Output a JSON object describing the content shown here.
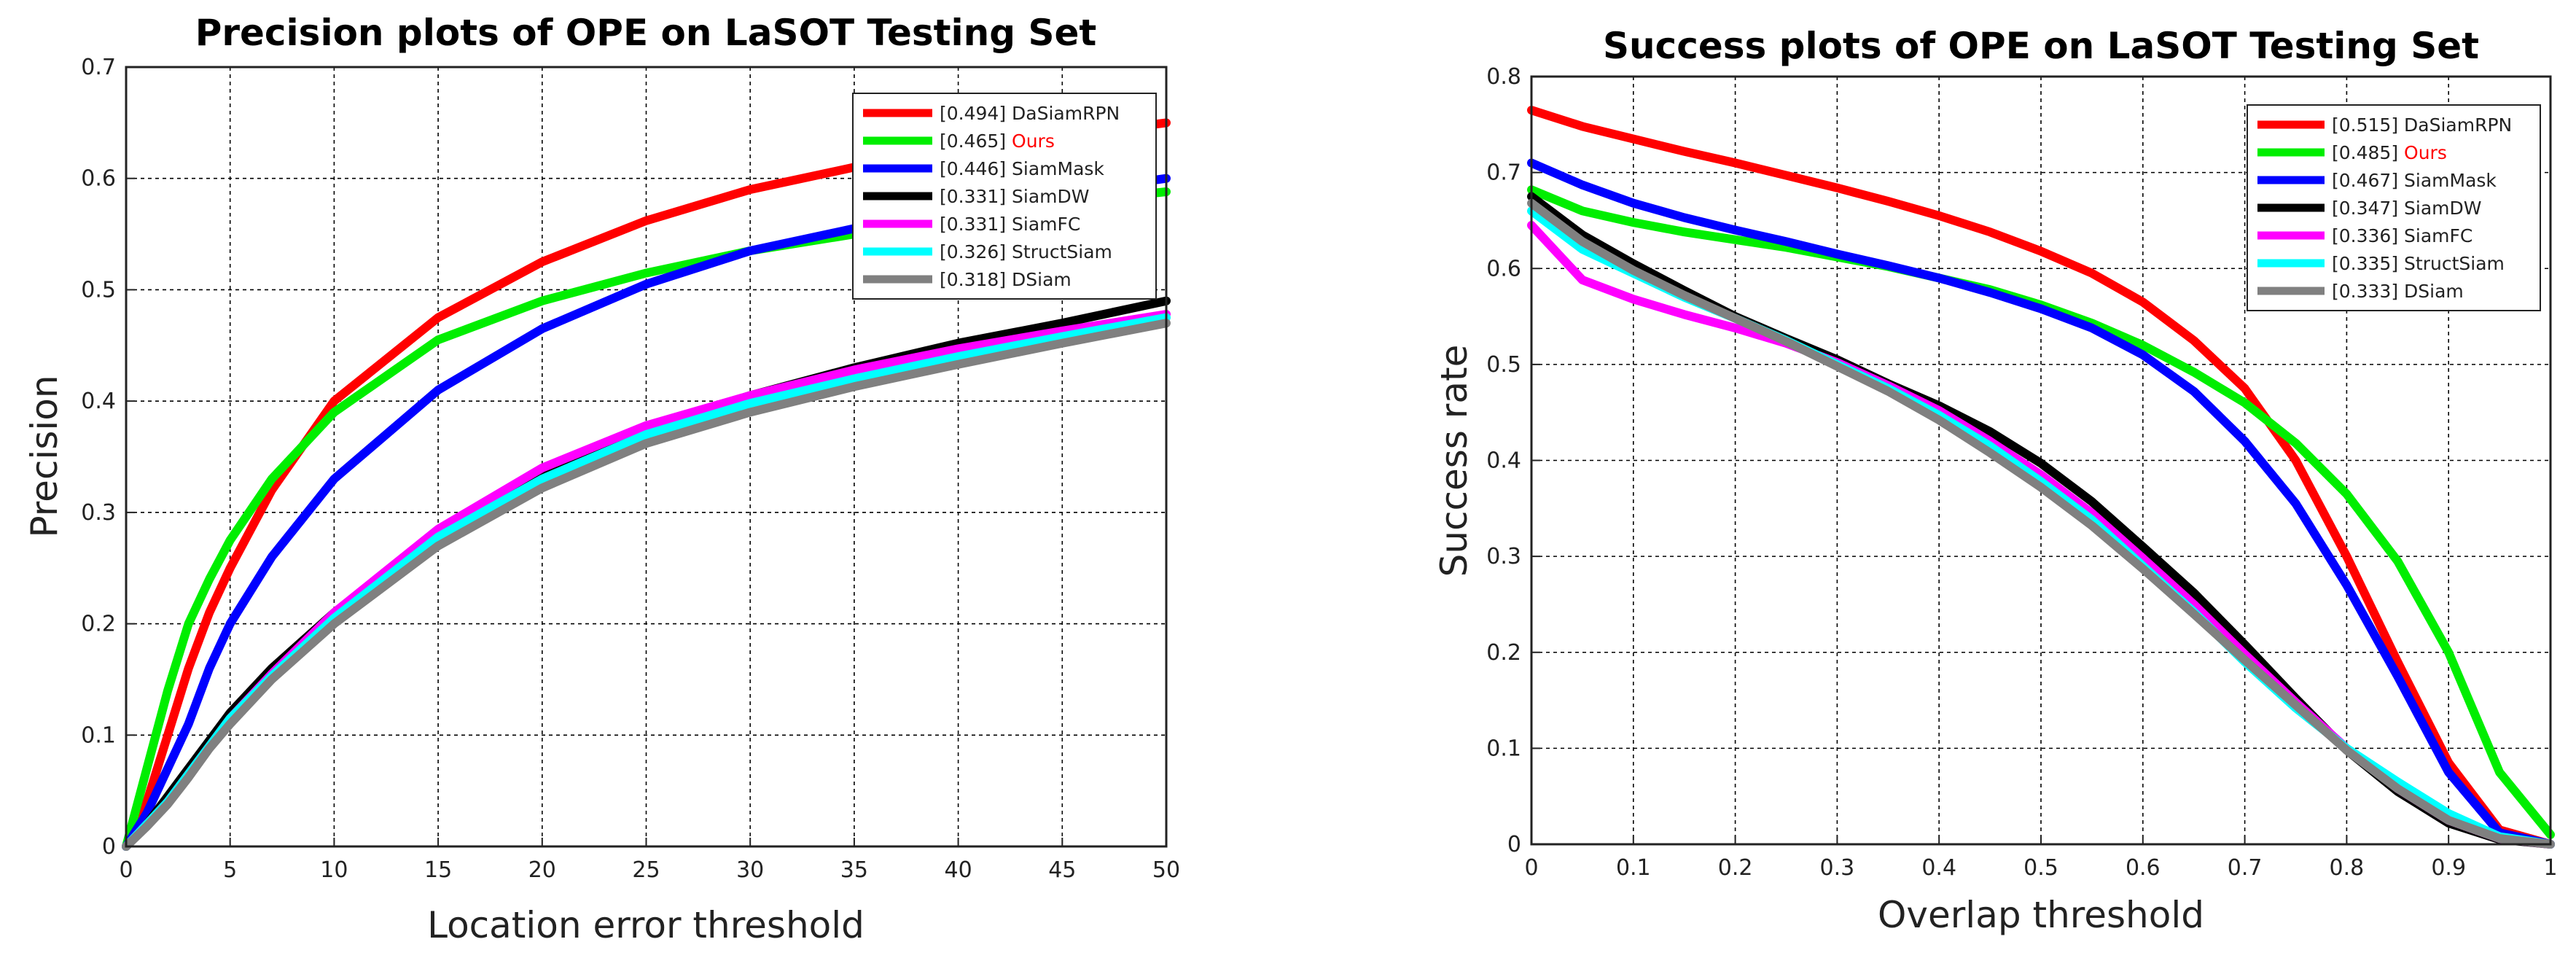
{
  "chart_data": [
    {
      "type": "line",
      "title": "Precision plots of OPE on LaSOT Testing Set",
      "xlabel": "Location error threshold",
      "ylabel": "Precision",
      "xlim": [
        0,
        50
      ],
      "ylim": [
        0,
        0.7
      ],
      "xticks": [
        0,
        5,
        10,
        15,
        20,
        25,
        30,
        35,
        40,
        45,
        50
      ],
      "yticks": [
        0,
        0.1,
        0.2,
        0.3,
        0.4,
        0.5,
        0.6,
        0.7
      ],
      "grid": true,
      "legend_position": "top-right",
      "x": [
        0,
        1,
        2,
        3,
        4,
        5,
        7,
        10,
        15,
        20,
        25,
        30,
        35,
        40,
        45,
        50
      ],
      "series": [
        {
          "name": "DaSiamRPN",
          "score": "[0.494]",
          "color": "#ff0000",
          "values": [
            0.0,
            0.04,
            0.1,
            0.16,
            0.21,
            0.25,
            0.32,
            0.4,
            0.475,
            0.525,
            0.562,
            0.59,
            0.61,
            0.625,
            0.638,
            0.65
          ]
        },
        {
          "name": "Ours",
          "score": "[0.465]",
          "color": "#00ee00",
          "label_color": "#ff0000",
          "values": [
            0.0,
            0.07,
            0.14,
            0.2,
            0.24,
            0.275,
            0.33,
            0.39,
            0.455,
            0.49,
            0.515,
            0.535,
            0.55,
            0.565,
            0.578,
            0.588
          ]
        },
        {
          "name": "SiamMask",
          "score": "[0.446]",
          "color": "#0000ff",
          "values": [
            0.0,
            0.03,
            0.07,
            0.11,
            0.16,
            0.2,
            0.26,
            0.33,
            0.41,
            0.465,
            0.505,
            0.535,
            0.555,
            0.572,
            0.587,
            0.6
          ]
        },
        {
          "name": "SiamDW",
          "score": "[0.331]",
          "color": "#000000",
          "values": [
            0.0,
            0.02,
            0.045,
            0.07,
            0.095,
            0.12,
            0.16,
            0.21,
            0.28,
            0.335,
            0.375,
            0.405,
            0.43,
            0.452,
            0.47,
            0.49
          ]
        },
        {
          "name": "SiamFC",
          "score": "[0.331]",
          "color": "#ff00ff",
          "values": [
            0.0,
            0.02,
            0.04,
            0.065,
            0.09,
            0.115,
            0.155,
            0.21,
            0.285,
            0.34,
            0.378,
            0.405,
            0.428,
            0.447,
            0.463,
            0.478
          ]
        },
        {
          "name": "StructSiam",
          "score": "[0.326]",
          "color": "#00ffff",
          "values": [
            0.0,
            0.02,
            0.04,
            0.065,
            0.09,
            0.115,
            0.153,
            0.205,
            0.278,
            0.33,
            0.37,
            0.398,
            0.42,
            0.44,
            0.458,
            0.475
          ]
        },
        {
          "name": "DSiam",
          "score": "[0.318]",
          "color": "#808080",
          "values": [
            0.0,
            0.018,
            0.038,
            0.062,
            0.088,
            0.11,
            0.15,
            0.2,
            0.27,
            0.322,
            0.362,
            0.39,
            0.413,
            0.433,
            0.452,
            0.47
          ]
        }
      ]
    },
    {
      "type": "line",
      "title": "Success plots of OPE on LaSOT Testing Set",
      "xlabel": "Overlap threshold",
      "ylabel": "Success rate",
      "xlim": [
        0,
        1
      ],
      "ylim": [
        0,
        0.8
      ],
      "xticks": [
        0,
        0.1,
        0.2,
        0.3,
        0.4,
        0.5,
        0.6,
        0.7,
        0.8,
        0.9,
        1
      ],
      "yticks": [
        0,
        0.1,
        0.2,
        0.3,
        0.4,
        0.5,
        0.6,
        0.7,
        0.8
      ],
      "grid": true,
      "legend_position": "top-right",
      "x": [
        0,
        0.05,
        0.1,
        0.15,
        0.2,
        0.25,
        0.3,
        0.35,
        0.4,
        0.45,
        0.5,
        0.55,
        0.6,
        0.65,
        0.7,
        0.75,
        0.8,
        0.85,
        0.9,
        0.95,
        1.0
      ],
      "series": [
        {
          "name": "DaSiamRPN",
          "score": "[0.515]",
          "color": "#ff0000",
          "values": [
            0.765,
            0.748,
            0.735,
            0.722,
            0.71,
            0.697,
            0.684,
            0.67,
            0.655,
            0.638,
            0.618,
            0.595,
            0.565,
            0.525,
            0.475,
            0.4,
            0.3,
            0.19,
            0.085,
            0.015,
            0.0
          ]
        },
        {
          "name": "Ours",
          "score": "[0.485]",
          "color": "#00ee00",
          "label_color": "#ff0000",
          "values": [
            0.682,
            0.66,
            0.648,
            0.638,
            0.63,
            0.622,
            0.612,
            0.602,
            0.59,
            0.578,
            0.562,
            0.543,
            0.52,
            0.492,
            0.46,
            0.418,
            0.365,
            0.295,
            0.2,
            0.075,
            0.01
          ]
        },
        {
          "name": "SiamMask",
          "score": "[0.467]",
          "color": "#0000ff",
          "values": [
            0.71,
            0.687,
            0.668,
            0.653,
            0.64,
            0.628,
            0.615,
            0.603,
            0.59,
            0.575,
            0.558,
            0.538,
            0.51,
            0.472,
            0.42,
            0.355,
            0.27,
            0.175,
            0.075,
            0.012,
            0.0
          ]
        },
        {
          "name": "SiamDW",
          "score": "[0.347]",
          "color": "#000000",
          "values": [
            0.675,
            0.635,
            0.605,
            0.577,
            0.55,
            0.527,
            0.505,
            0.48,
            0.457,
            0.43,
            0.397,
            0.357,
            0.31,
            0.262,
            0.208,
            0.152,
            0.098,
            0.055,
            0.022,
            0.005,
            0.0
          ]
        },
        {
          "name": "SiamFC",
          "score": "[0.336]",
          "color": "#ff00ff",
          "values": [
            0.645,
            0.588,
            0.568,
            0.552,
            0.538,
            0.522,
            0.502,
            0.478,
            0.452,
            0.42,
            0.385,
            0.345,
            0.298,
            0.25,
            0.198,
            0.148,
            0.1,
            0.058,
            0.025,
            0.006,
            0.0
          ]
        },
        {
          "name": "StructSiam",
          "score": "[0.335]",
          "color": "#00ffff",
          "values": [
            0.66,
            0.62,
            0.595,
            0.57,
            0.548,
            0.525,
            0.5,
            0.475,
            0.447,
            0.415,
            0.378,
            0.338,
            0.29,
            0.242,
            0.19,
            0.142,
            0.1,
            0.065,
            0.032,
            0.008,
            0.0
          ]
        },
        {
          "name": "DSiam",
          "score": "[0.333]",
          "color": "#808080",
          "values": [
            0.668,
            0.628,
            0.598,
            0.572,
            0.548,
            0.524,
            0.498,
            0.472,
            0.442,
            0.408,
            0.372,
            0.332,
            0.287,
            0.24,
            0.192,
            0.145,
            0.098,
            0.058,
            0.025,
            0.006,
            0.0
          ]
        }
      ]
    }
  ]
}
